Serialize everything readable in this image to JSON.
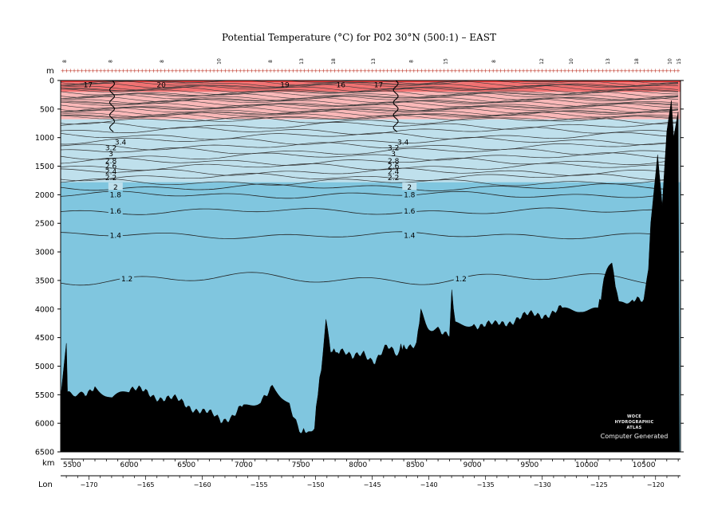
{
  "chart_data": {
    "type": "section",
    "title": "Potential Temperature (°C) for P02 30°N (500:1) – EAST",
    "y_unit": "m",
    "x_unit": "km",
    "lon_label": "Lon",
    "ylim": [
      6500,
      0
    ],
    "xlim": [
      5400,
      10820
    ],
    "lon_range": [
      -172.5,
      -117.8
    ],
    "y_ticks": [
      0,
      500,
      1000,
      1500,
      2000,
      2500,
      3000,
      3500,
      4000,
      4500,
      5000,
      5500,
      6000,
      6500
    ],
    "x_ticks": [
      5500,
      6000,
      6500,
      7000,
      7500,
      8000,
      8500,
      9000,
      9500,
      10000,
      10500
    ],
    "lon_ticks": [
      -170,
      -165,
      -160,
      -155,
      -150,
      -145,
      -140,
      -135,
      -130,
      -125,
      -120
    ],
    "station_labels": [
      {
        "km": 5450,
        "label": "8"
      },
      {
        "km": 5850,
        "label": "8"
      },
      {
        "km": 6300,
        "label": "8"
      },
      {
        "km": 6800,
        "label": "10"
      },
      {
        "km": 7250,
        "label": "8"
      },
      {
        "km": 7520,
        "label": "13"
      },
      {
        "km": 7800,
        "label": "18"
      },
      {
        "km": 8150,
        "label": "13"
      },
      {
        "km": 8480,
        "label": "8"
      },
      {
        "km": 8780,
        "label": "15"
      },
      {
        "km": 9200,
        "label": "8"
      },
      {
        "km": 9620,
        "label": "12"
      },
      {
        "km": 9880,
        "label": "10"
      },
      {
        "km": 10200,
        "label": "13"
      },
      {
        "km": 10450,
        "label": "18"
      },
      {
        "km": 10740,
        "label": "10"
      },
      {
        "km": 10820,
        "label": "15"
      }
    ],
    "contour_levels_deep": [
      {
        "value": "2",
        "depth": 1870
      },
      {
        "value": "1.8",
        "depth": 2000
      },
      {
        "value": "1.6",
        "depth": 2290
      },
      {
        "value": "1.4",
        "depth": 2710
      },
      {
        "value": "1.2",
        "depth": 3470
      }
    ],
    "contour_labels_mid": [
      "3.4",
      "3.2",
      "3",
      "2.8",
      "2.6",
      "2.4",
      "2.2"
    ],
    "contour_labels_surface": [
      "17",
      "20",
      "19",
      "16",
      "17"
    ],
    "color_bands": [
      {
        "from": 0,
        "to": 30,
        "color": "#e93a3a"
      },
      {
        "from": 30,
        "to": 200,
        "color": "#f17272"
      },
      {
        "from": 200,
        "to": 680,
        "color": "#fab8b8"
      },
      {
        "from": 680,
        "to": 1780,
        "color": "#bfe0ec"
      },
      {
        "from": 1780,
        "to": 6500,
        "color": "#80c6df"
      }
    ],
    "bottom_topography_km_depth": [
      [
        5400,
        5550
      ],
      [
        5450,
        4600
      ],
      [
        5460,
        5450
      ],
      [
        5600,
        5450
      ],
      [
        5700,
        5350
      ],
      [
        5850,
        5550
      ],
      [
        6000,
        5400
      ],
      [
        6200,
        5500
      ],
      [
        6400,
        5600
      ],
      [
        6600,
        5750
      ],
      [
        6800,
        5950
      ],
      [
        6900,
        5850
      ],
      [
        7000,
        5700
      ],
      [
        7150,
        5550
      ],
      [
        7250,
        5350
      ],
      [
        7400,
        5700
      ],
      [
        7500,
        6100
      ],
      [
        7550,
        6200
      ],
      [
        7620,
        6050
      ],
      [
        7680,
        5000
      ],
      [
        7720,
        4250
      ],
      [
        7760,
        4800
      ],
      [
        7850,
        4700
      ],
      [
        7950,
        4900
      ],
      [
        8050,
        4750
      ],
      [
        8150,
        4900
      ],
      [
        8250,
        4700
      ],
      [
        8350,
        4800
      ],
      [
        8400,
        4600
      ],
      [
        8500,
        4650
      ],
      [
        8550,
        4100
      ],
      [
        8620,
        4400
      ],
      [
        8700,
        4300
      ],
      [
        8800,
        4450
      ],
      [
        8820,
        3650
      ],
      [
        8850,
        4300
      ],
      [
        9000,
        4250
      ],
      [
        9200,
        4300
      ],
      [
        9400,
        4150
      ],
      [
        9600,
        4100
      ],
      [
        9800,
        4000
      ],
      [
        9950,
        3950
      ],
      [
        10100,
        4000
      ],
      [
        10150,
        3500
      ],
      [
        10220,
        3200
      ],
      [
        10280,
        3850
      ],
      [
        10400,
        3900
      ],
      [
        10500,
        3850
      ],
      [
        10540,
        3300
      ],
      [
        10560,
        2500
      ],
      [
        10620,
        1300
      ],
      [
        10660,
        2200
      ],
      [
        10700,
        900
      ],
      [
        10740,
        350
      ],
      [
        10760,
        1000
      ],
      [
        10800,
        550
      ],
      [
        10810,
        6500
      ]
    ],
    "grid": false
  },
  "credit": {
    "line1": "WOCE",
    "line2": "HYDROGRAPHIC",
    "line3": "ATLAS",
    "line4": "Computer Generated"
  }
}
